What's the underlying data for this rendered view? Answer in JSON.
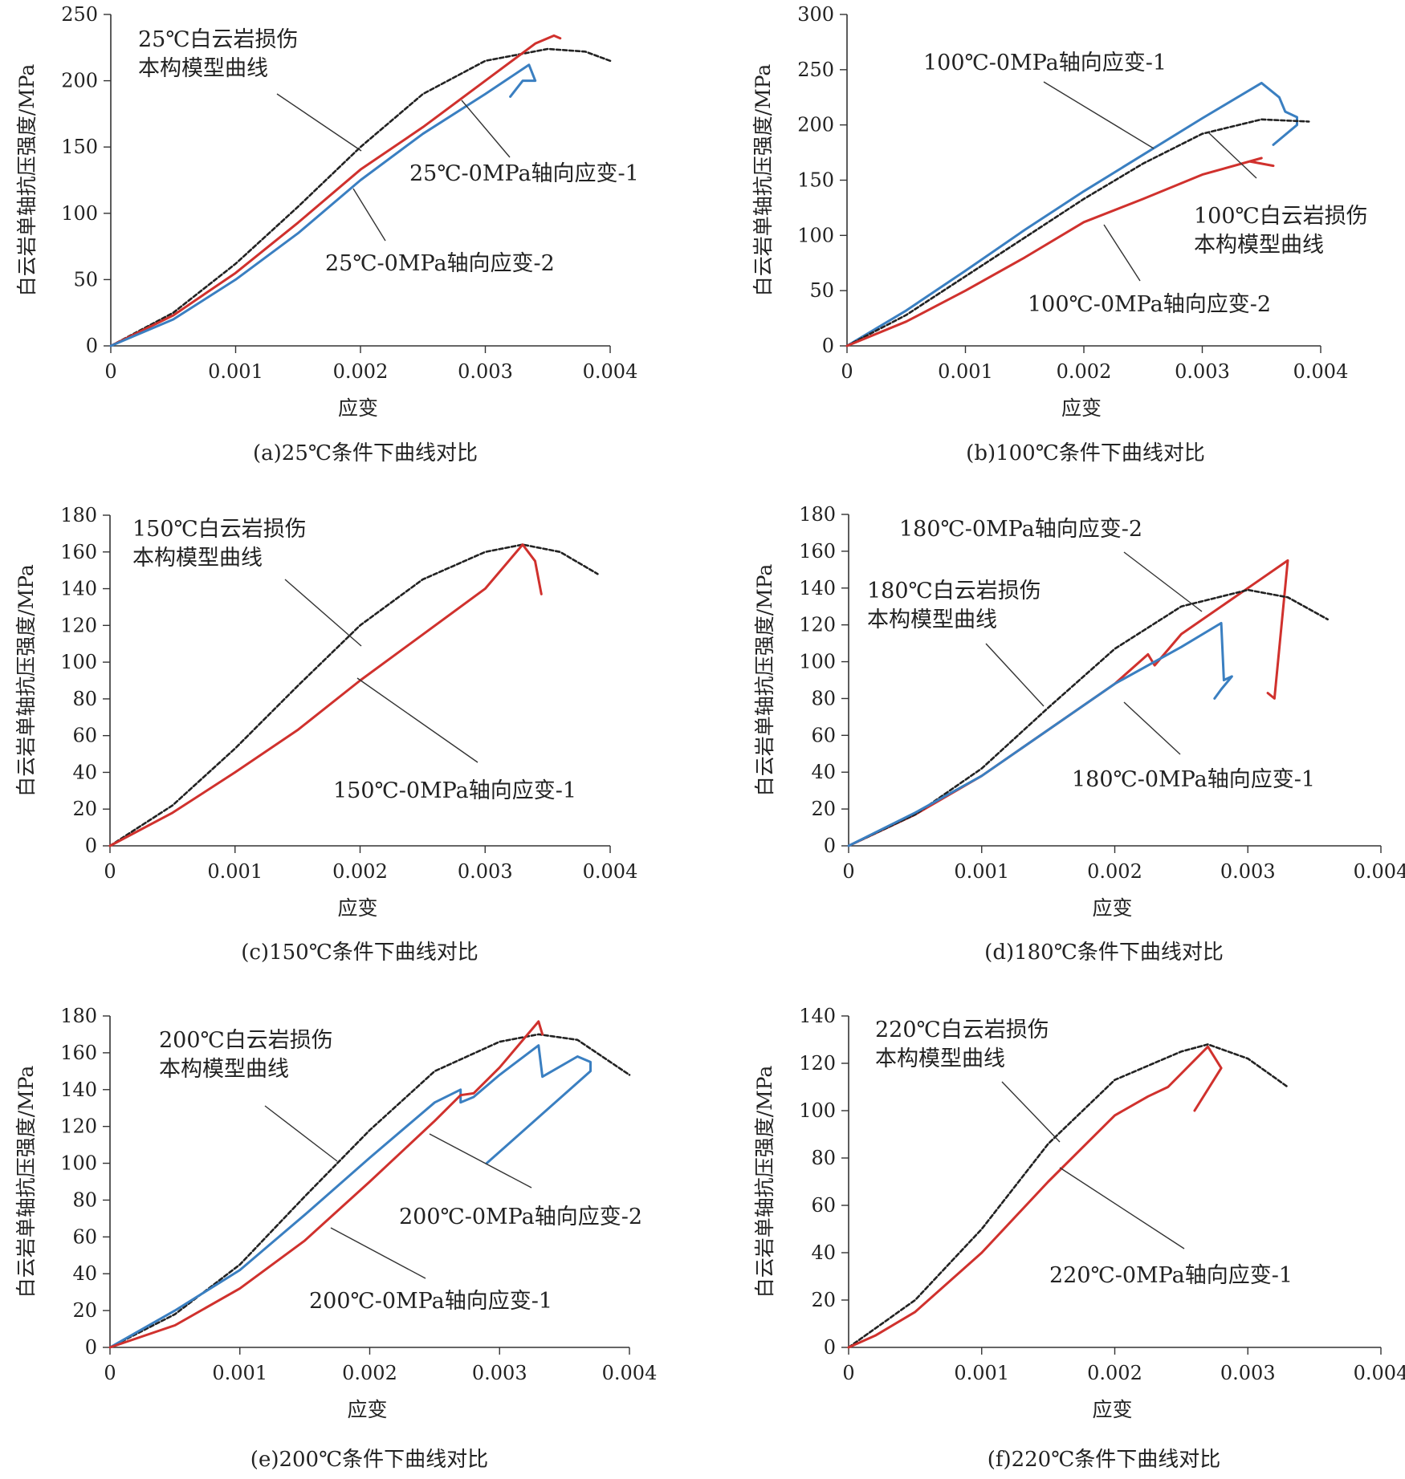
{
  "chart_data": [
    {
      "id": "a",
      "type": "line",
      "caption": "(a)25℃条件下曲线对比",
      "xlabel": "应变",
      "ylabel": "白云岩单轴抗压强度/MPa",
      "xlim": [
        0,
        0.004
      ],
      "ylim": [
        0,
        250
      ],
      "xticks": [
        "0",
        "0.001",
        "0.002",
        "0.003",
        "0.004"
      ],
      "yticks": [
        "0",
        "50",
        "100",
        "150",
        "200",
        "250"
      ],
      "legend": "none",
      "grid": false,
      "series": [
        {
          "name": "25℃白云岩损伤本构模型曲线",
          "color": "#222222",
          "dashed": true,
          "points": [
            [
              0,
              0
            ],
            [
              0.0005,
              25
            ],
            [
              0.001,
              62
            ],
            [
              0.0015,
              105
            ],
            [
              0.002,
              150
            ],
            [
              0.0025,
              190
            ],
            [
              0.003,
              215
            ],
            [
              0.0035,
              224
            ],
            [
              0.0038,
              222
            ],
            [
              0.004,
              215
            ]
          ]
        },
        {
          "name": "25℃-0MPa轴向应变-1",
          "color": "#d0312d",
          "dashed": false,
          "points": [
            [
              0,
              0
            ],
            [
              0.0005,
              23
            ],
            [
              0.001,
              55
            ],
            [
              0.0015,
              93
            ],
            [
              0.002,
              133
            ],
            [
              0.0025,
              165
            ],
            [
              0.003,
              200
            ],
            [
              0.0034,
              228
            ],
            [
              0.00355,
              234
            ],
            [
              0.0036,
              232
            ]
          ]
        },
        {
          "name": "25℃-0MPa轴向应变-2",
          "color": "#3a7fc1",
          "dashed": false,
          "points": [
            [
              0,
              0
            ],
            [
              0.0005,
              20
            ],
            [
              0.001,
              50
            ],
            [
              0.0015,
              85
            ],
            [
              0.002,
              125
            ],
            [
              0.0025,
              160
            ],
            [
              0.003,
              190
            ],
            [
              0.00335,
              212
            ],
            [
              0.0034,
              200
            ],
            [
              0.0033,
              200
            ],
            [
              0.0032,
              188
            ]
          ]
        }
      ],
      "annotations": [
        {
          "lines": [
            "25℃白云岩损伤",
            "本构模型曲线"
          ]
        },
        {
          "lines": [
            "25℃-0MPa轴向应变-1"
          ]
        },
        {
          "lines": [
            "25℃-0MPa轴向应变-2"
          ]
        }
      ]
    },
    {
      "id": "b",
      "type": "line",
      "caption": "(b)100℃条件下曲线对比",
      "xlabel": "应变",
      "ylabel": "白云岩单轴抗压强度/MPa",
      "xlim": [
        0,
        0.004
      ],
      "ylim": [
        0,
        300
      ],
      "xticks": [
        "0",
        "0.001",
        "0.002",
        "0.003",
        "0.004"
      ],
      "yticks": [
        "0",
        "50",
        "100",
        "150",
        "200",
        "250",
        "300"
      ],
      "legend": "none",
      "grid": false,
      "series": [
        {
          "name": "100℃-0MPa轴向应变-1",
          "color": "#3a7fc1",
          "dashed": false,
          "points": [
            [
              0,
              0
            ],
            [
              0.0005,
              32
            ],
            [
              0.001,
              68
            ],
            [
              0.0015,
              105
            ],
            [
              0.002,
              140
            ],
            [
              0.0025,
              173
            ],
            [
              0.003,
              206
            ],
            [
              0.0035,
              238
            ],
            [
              0.00365,
              225
            ],
            [
              0.0037,
              212
            ],
            [
              0.0038,
              207
            ],
            [
              0.0038,
              200
            ],
            [
              0.0036,
              182
            ]
          ]
        },
        {
          "name": "100℃白云岩损伤本构模型曲线",
          "color": "#222222",
          "dashed": true,
          "points": [
            [
              0,
              0
            ],
            [
              0.0005,
              28
            ],
            [
              0.001,
              63
            ],
            [
              0.0015,
              98
            ],
            [
              0.002,
              133
            ],
            [
              0.0025,
              165
            ],
            [
              0.003,
              192
            ],
            [
              0.0035,
              205
            ],
            [
              0.0039,
              203
            ]
          ]
        },
        {
          "name": "100℃-0MPa轴向应变-2",
          "color": "#d0312d",
          "dashed": false,
          "points": [
            [
              0,
              0
            ],
            [
              0.0005,
              22
            ],
            [
              0.001,
              50
            ],
            [
              0.0015,
              80
            ],
            [
              0.002,
              112
            ],
            [
              0.0025,
              133
            ],
            [
              0.003,
              155
            ],
            [
              0.0035,
              170
            ],
            [
              0.0034,
              167
            ],
            [
              0.0036,
              163
            ]
          ]
        }
      ],
      "annotations": [
        {
          "lines": [
            "100℃-0MPa轴向应变-1"
          ]
        },
        {
          "lines": [
            "100℃白云岩损伤",
            "本构模型曲线"
          ]
        },
        {
          "lines": [
            "100℃-0MPa轴向应变-2"
          ]
        }
      ]
    },
    {
      "id": "c",
      "type": "line",
      "caption": "(c)150℃条件下曲线对比",
      "xlabel": "应变",
      "ylabel": "白云岩单轴抗压强度/MPa",
      "xlim": [
        0,
        0.004
      ],
      "ylim": [
        0,
        180
      ],
      "xticks": [
        "0",
        "0.001",
        "0.002",
        "0.003",
        "0.004"
      ],
      "yticks": [
        "0",
        "20",
        "40",
        "60",
        "80",
        "100",
        "120",
        "140",
        "160",
        "180"
      ],
      "legend": "none",
      "grid": false,
      "series": [
        {
          "name": "150℃白云岩损伤本构模型曲线",
          "color": "#222222",
          "dashed": true,
          "points": [
            [
              0,
              0
            ],
            [
              0.0005,
              22
            ],
            [
              0.001,
              53
            ],
            [
              0.0015,
              87
            ],
            [
              0.002,
              120
            ],
            [
              0.0025,
              145
            ],
            [
              0.003,
              160
            ],
            [
              0.0033,
              164
            ],
            [
              0.0036,
              160
            ],
            [
              0.0039,
              148
            ]
          ]
        },
        {
          "name": "150℃-0MPa轴向应变-1",
          "color": "#d0312d",
          "dashed": false,
          "points": [
            [
              0,
              0
            ],
            [
              0.0005,
              18
            ],
            [
              0.001,
              40
            ],
            [
              0.0015,
              63
            ],
            [
              0.002,
              90
            ],
            [
              0.0025,
              115
            ],
            [
              0.003,
              140
            ],
            [
              0.0033,
              164
            ],
            [
              0.0034,
              155
            ],
            [
              0.00345,
              137
            ]
          ]
        }
      ],
      "annotations": [
        {
          "lines": [
            "150℃白云岩损伤",
            "本构模型曲线"
          ]
        },
        {
          "lines": [
            "150℃-0MPa轴向应变-1"
          ]
        }
      ]
    },
    {
      "id": "d",
      "type": "line",
      "caption": "(d)180℃条件下曲线对比",
      "xlabel": "应变",
      "ylabel": "白云岩单轴抗压强度/MPa",
      "xlim": [
        0,
        0.004
      ],
      "ylim": [
        0,
        180
      ],
      "xticks": [
        "0",
        "0.001",
        "0.002",
        "0.003",
        "0.004"
      ],
      "yticks": [
        "0",
        "20",
        "40",
        "60",
        "80",
        "100",
        "120",
        "140",
        "160",
        "180"
      ],
      "legend": "none",
      "grid": false,
      "series": [
        {
          "name": "180℃-0MPa轴向应变-2",
          "color": "#d0312d",
          "dashed": false,
          "points": [
            [
              0,
              0
            ],
            [
              0.0005,
              17
            ],
            [
              0.001,
              38
            ],
            [
              0.0015,
              63
            ],
            [
              0.002,
              88
            ],
            [
              0.00225,
              104
            ],
            [
              0.0023,
              98
            ],
            [
              0.0025,
              115
            ],
            [
              0.003,
              140
            ],
            [
              0.0033,
              155
            ],
            [
              0.0032,
              80
            ],
            [
              0.00315,
              83
            ]
          ]
        },
        {
          "name": "180℃白云岩损伤本构模型曲线",
          "color": "#222222",
          "dashed": true,
          "points": [
            [
              0,
              0
            ],
            [
              0.0005,
              17
            ],
            [
              0.001,
              42
            ],
            [
              0.0015,
              75
            ],
            [
              0.002,
              107
            ],
            [
              0.0025,
              130
            ],
            [
              0.003,
              139
            ],
            [
              0.0033,
              135
            ],
            [
              0.0036,
              123
            ]
          ]
        },
        {
          "name": "180℃-0MPa轴向应变-1",
          "color": "#3a7fc1",
          "dashed": false,
          "points": [
            [
              0,
              0
            ],
            [
              0.0005,
              18
            ],
            [
              0.001,
              38
            ],
            [
              0.0015,
              63
            ],
            [
              0.002,
              88
            ],
            [
              0.0025,
              108
            ],
            [
              0.0028,
              121
            ],
            [
              0.00282,
              90
            ],
            [
              0.00288,
              92
            ],
            [
              0.0028,
              85
            ],
            [
              0.00275,
              80
            ]
          ]
        }
      ],
      "annotations": [
        {
          "lines": [
            "180℃-0MPa轴向应变-2"
          ]
        },
        {
          "lines": [
            "180℃白云岩损伤",
            "本构模型曲线"
          ]
        },
        {
          "lines": [
            "180℃-0MPa轴向应变-1"
          ]
        }
      ]
    },
    {
      "id": "e",
      "type": "line",
      "caption": "(e)200℃条件下曲线对比",
      "xlabel": "应变",
      "ylabel": "白云岩单轴抗压强度/MPa",
      "xlim": [
        0,
        0.004
      ],
      "ylim": [
        0,
        180
      ],
      "xticks": [
        "0",
        "0.001",
        "0.002",
        "0.003",
        "0.004"
      ],
      "yticks": [
        "0",
        "20",
        "40",
        "60",
        "80",
        "100",
        "120",
        "140",
        "160",
        "180"
      ],
      "legend": "none",
      "grid": false,
      "series": [
        {
          "name": "200℃白云岩损伤本构模型曲线",
          "color": "#222222",
          "dashed": true,
          "points": [
            [
              0,
              0
            ],
            [
              0.0005,
              18
            ],
            [
              0.001,
              45
            ],
            [
              0.0015,
              82
            ],
            [
              0.002,
              118
            ],
            [
              0.0025,
              150
            ],
            [
              0.003,
              166
            ],
            [
              0.0033,
              170
            ],
            [
              0.0036,
              167
            ],
            [
              0.004,
              148
            ]
          ]
        },
        {
          "name": "200℃-0MPa轴向应变-2",
          "color": "#3a7fc1",
          "dashed": false,
          "points": [
            [
              0,
              0
            ],
            [
              0.0005,
              20
            ],
            [
              0.001,
              42
            ],
            [
              0.0015,
              72
            ],
            [
              0.002,
              103
            ],
            [
              0.0025,
              133
            ],
            [
              0.0027,
              140
            ],
            [
              0.0027,
              133
            ],
            [
              0.0028,
              136
            ],
            [
              0.003,
              148
            ],
            [
              0.0033,
              164
            ],
            [
              0.00333,
              147
            ],
            [
              0.0036,
              158
            ],
            [
              0.0037,
              155
            ],
            [
              0.0037,
              150
            ],
            [
              0.0029,
              100
            ]
          ]
        },
        {
          "name": "200℃-0MPa轴向应变-1",
          "color": "#d0312d",
          "dashed": false,
          "points": [
            [
              0,
              0
            ],
            [
              0.0005,
              12
            ],
            [
              0.001,
              32
            ],
            [
              0.0015,
              58
            ],
            [
              0.002,
              90
            ],
            [
              0.0025,
              123
            ],
            [
              0.0027,
              137
            ],
            [
              0.0028,
              138
            ],
            [
              0.003,
              152
            ],
            [
              0.0033,
              177
            ],
            [
              0.00333,
              170
            ]
          ]
        }
      ],
      "annotations": [
        {
          "lines": [
            "200℃白云岩损伤",
            "本构模型曲线"
          ]
        },
        {
          "lines": [
            "200℃-0MPa轴向应变-2"
          ]
        },
        {
          "lines": [
            "200℃-0MPa轴向应变-1"
          ]
        }
      ]
    },
    {
      "id": "f",
      "type": "line",
      "caption": "(f)220℃条件下曲线对比",
      "xlabel": "应变",
      "ylabel": "白云岩单轴抗压强度/MPa",
      "xlim": [
        0,
        0.004
      ],
      "ylim": [
        0,
        140
      ],
      "xticks": [
        "0",
        "0.001",
        "0.002",
        "0.003",
        "0.004"
      ],
      "yticks": [
        "0",
        "20",
        "40",
        "60",
        "80",
        "100",
        "120",
        "140"
      ],
      "legend": "none",
      "grid": false,
      "series": [
        {
          "name": "220℃白云岩损伤本构模型曲线",
          "color": "#222222",
          "dashed": true,
          "points": [
            [
              0,
              0
            ],
            [
              0.0005,
              20
            ],
            [
              0.001,
              50
            ],
            [
              0.0015,
              86
            ],
            [
              0.002,
              113
            ],
            [
              0.0025,
              125
            ],
            [
              0.0027,
              128
            ],
            [
              0.003,
              122
            ],
            [
              0.0033,
              110
            ]
          ]
        },
        {
          "name": "220℃-0MPa轴向应变-1",
          "color": "#d0312d",
          "dashed": false,
          "points": [
            [
              0,
              0
            ],
            [
              0.0002,
              5
            ],
            [
              0.0005,
              15
            ],
            [
              0.001,
              40
            ],
            [
              0.0015,
              70
            ],
            [
              0.002,
              98
            ],
            [
              0.00225,
              106
            ],
            [
              0.0024,
              110
            ],
            [
              0.0027,
              127
            ],
            [
              0.0028,
              118
            ],
            [
              0.0026,
              100
            ]
          ]
        }
      ],
      "annotations": [
        {
          "lines": [
            "220℃白云岩损伤",
            "本构模型曲线"
          ]
        },
        {
          "lines": [
            "220℃-0MPa轴向应变-1"
          ]
        }
      ]
    }
  ]
}
